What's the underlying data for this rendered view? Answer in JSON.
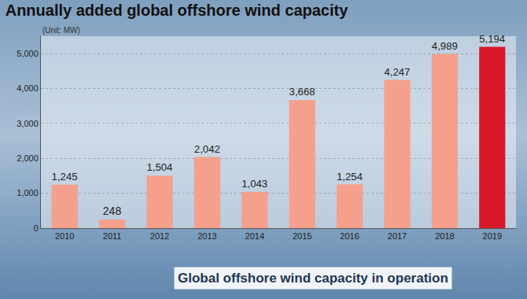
{
  "chart_data": {
    "type": "bar",
    "title": "Annually added global offshore wind capacity",
    "subtitle": "(Unit: MW)",
    "categories": [
      "2010",
      "2011",
      "2012",
      "2013",
      "2014",
      "2015",
      "2016",
      "2017",
      "2018",
      "2019"
    ],
    "values": [
      1245,
      248,
      1504,
      2042,
      1043,
      3668,
      1254,
      4247,
      4989,
      5194
    ],
    "value_labels": [
      "1,245",
      "248",
      "1,504",
      "2,042",
      "1,043",
      "3,668",
      "1,254",
      "4,247",
      "4,989",
      "5,194"
    ],
    "colors": [
      "#f4a08c",
      "#f4a08c",
      "#f4a08c",
      "#f4a08c",
      "#f4a08c",
      "#f4a08c",
      "#f4a08c",
      "#f4a08c",
      "#f4a08c",
      "#d9182b"
    ],
    "ylim": [
      0,
      5500
    ],
    "yticks": [
      0,
      {
        "value": 1000,
        "label": "1,000"
      },
      {
        "value": 2000,
        "label": "2,000"
      },
      {
        "value": 3000,
        "label": "3,000"
      },
      {
        "value": 4000,
        "label": "4,000"
      },
      {
        "value": 5000,
        "label": "5,000"
      }
    ],
    "grid": true,
    "data_labels": true,
    "annotations": [
      "Global offshore wind capacity in operation"
    ]
  }
}
